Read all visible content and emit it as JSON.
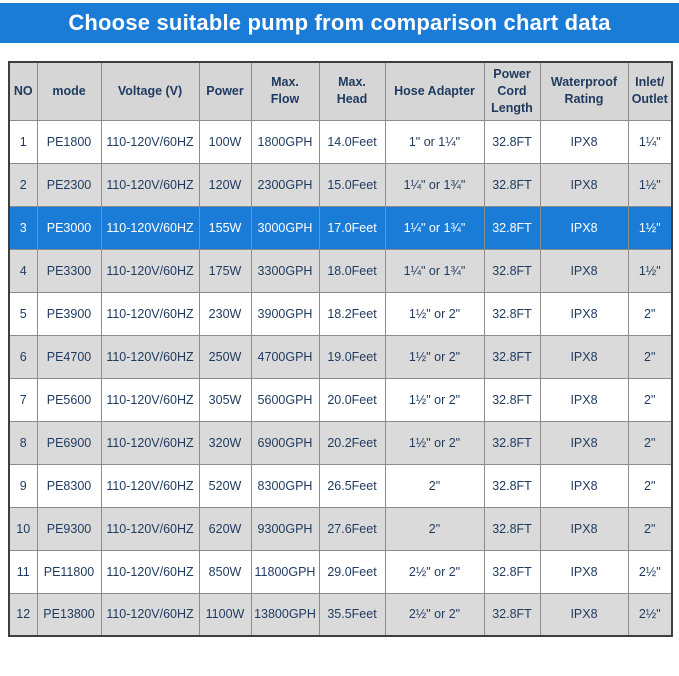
{
  "title": "Choose suitable pump from comparison chart data",
  "colors": {
    "accent": "#1a7cd6",
    "header_bg": "#d6d6d6",
    "alt_row_bg": "#dadada",
    "text": "#1e3a5f",
    "border": "#8c8c8c",
    "outer_border": "#3f3f3f",
    "highlight_text": "#ffffff"
  },
  "table": {
    "header_lines": [
      [
        "NO"
      ],
      [
        "mode"
      ],
      [
        "Voltage (V)"
      ],
      [
        "Power"
      ],
      [
        "Max.",
        "Flow"
      ],
      [
        "Max.",
        "Head"
      ],
      [
        "Hose Adapter"
      ],
      [
        "Power",
        "Cord",
        "Length"
      ],
      [
        "Waterproof",
        "Rating"
      ],
      [
        "Inlet/",
        "Outlet"
      ]
    ]
  },
  "chart_data": {
    "type": "table",
    "title": "Choose suitable pump from comparison chart data",
    "columns": [
      "NO",
      "mode",
      "Voltage (V)",
      "Power",
      "Max. Flow",
      "Max. Head",
      "Hose Adapter",
      "Power Cord Length",
      "Waterproof Rating",
      "Inlet/Outlet"
    ],
    "rows": [
      [
        "1",
        "PE1800",
        "110-120V/60HZ",
        "100W",
        "1800GPH",
        "14.0Feet",
        "1\" or 1¼\"",
        "32.8FT",
        "IPX8",
        "1¼\""
      ],
      [
        "2",
        "PE2300",
        "110-120V/60HZ",
        "120W",
        "2300GPH",
        "15.0Feet",
        "1¼\" or 1¾\"",
        "32.8FT",
        "IPX8",
        "1½\""
      ],
      [
        "3",
        "PE3000",
        "110-120V/60HZ",
        "155W",
        "3000GPH",
        "17.0Feet",
        "1¼\" or 1¾\"",
        "32.8FT",
        "IPX8",
        "1½\""
      ],
      [
        "4",
        "PE3300",
        "110-120V/60HZ",
        "175W",
        "3300GPH",
        "18.0Feet",
        "1¼\" or 1¾\"",
        "32.8FT",
        "IPX8",
        "1½\""
      ],
      [
        "5",
        "PE3900",
        "110-120V/60HZ",
        "230W",
        "3900GPH",
        "18.2Feet",
        "1½\" or 2\"",
        "32.8FT",
        "IPX8",
        "2\""
      ],
      [
        "6",
        "PE4700",
        "110-120V/60HZ",
        "250W",
        "4700GPH",
        "19.0Feet",
        "1½\" or 2\"",
        "32.8FT",
        "IPX8",
        "2\""
      ],
      [
        "7",
        "PE5600",
        "110-120V/60HZ",
        "305W",
        "5600GPH",
        "20.0Feet",
        "1½\" or 2\"",
        "32.8FT",
        "IPX8",
        "2\""
      ],
      [
        "8",
        "PE6900",
        "110-120V/60HZ",
        "320W",
        "6900GPH",
        "20.2Feet",
        "1½\" or 2\"",
        "32.8FT",
        "IPX8",
        "2\""
      ],
      [
        "9",
        "PE8300",
        "110-120V/60HZ",
        "520W",
        "8300GPH",
        "26.5Feet",
        "2\"",
        "32.8FT",
        "IPX8",
        "2\""
      ],
      [
        "10",
        "PE9300",
        "110-120V/60HZ",
        "620W",
        "9300GPH",
        "27.6Feet",
        "2\"",
        "32.8FT",
        "IPX8",
        "2\""
      ],
      [
        "11",
        "PE11800",
        "110-120V/60HZ",
        "850W",
        "11800GPH",
        "29.0Feet",
        "2½\" or 2\"",
        "32.8FT",
        "IPX8",
        "2½\""
      ],
      [
        "12",
        "PE13800",
        "110-120V/60HZ",
        "1100W",
        "13800GPH",
        "35.5Feet",
        "2½\" or 2\"",
        "32.8FT",
        "IPX8",
        "2½\""
      ]
    ],
    "highlighted_row_index": 2,
    "legend": "none",
    "grid": "on"
  }
}
